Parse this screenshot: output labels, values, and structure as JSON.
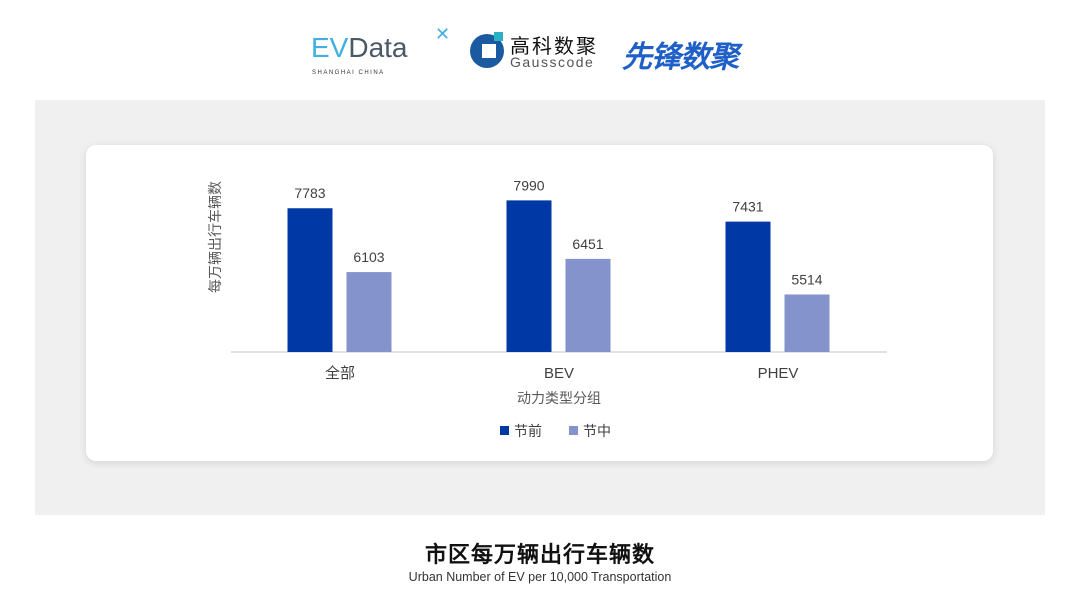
{
  "logos": {
    "evdata": {
      "ev": "EV",
      "rest": "Data",
      "tagline": "SHANGHAI CHINA"
    },
    "gausscode": {
      "cn": "高科数聚",
      "en": "Gausscode"
    },
    "xianfeng": {
      "cn": "先锋数聚"
    }
  },
  "title": "市区每万辆出行车辆数",
  "subtitle": "Urban Number of EV per 10,000 Transportation",
  "chart_data": {
    "type": "bar",
    "categories": [
      "全部",
      "BEV",
      "PHEV"
    ],
    "series": [
      {
        "name": "节前",
        "values": [
          7783,
          7990,
          7431
        ],
        "color": "#0039a6"
      },
      {
        "name": "节中",
        "values": [
          6103,
          6451,
          5514
        ],
        "color": "#8593cc"
      }
    ],
    "xlabel": "动力类型分组",
    "ylabel": "每万辆出行车辆数",
    "ylim": [
      4000,
      9000
    ],
    "grid": false,
    "legend": "bottom",
    "data_labels": true
  }
}
